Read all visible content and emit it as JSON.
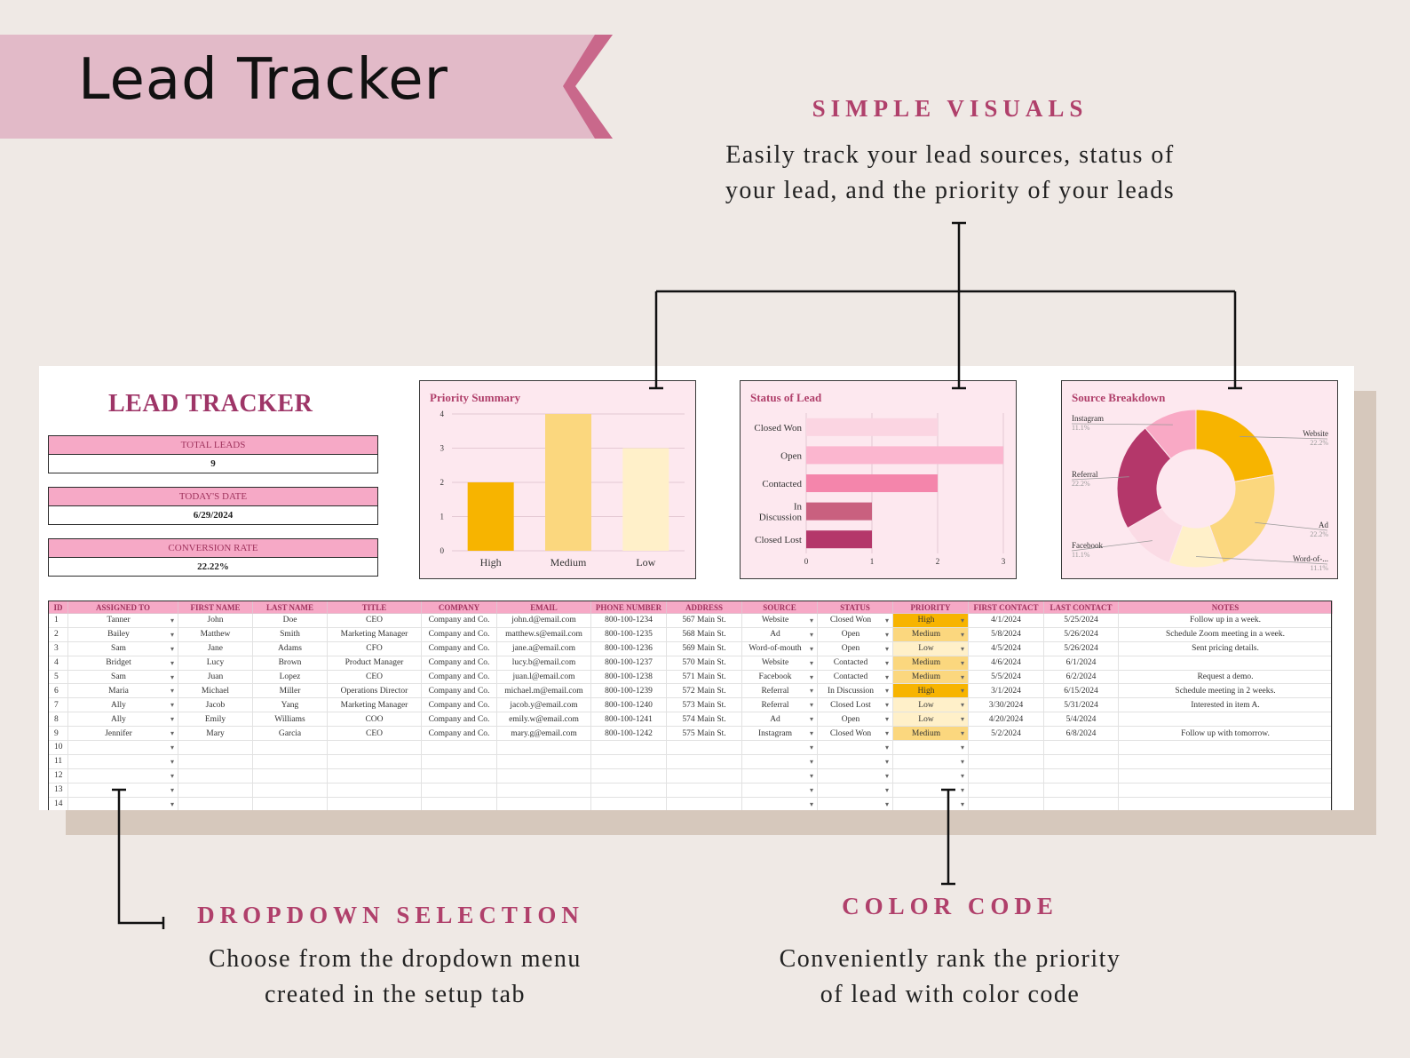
{
  "banner": {
    "title": "Lead Tracker"
  },
  "callouts": {
    "visuals": {
      "heading": "SIMPLE VISUALS",
      "line1": "Easily track your lead sources, status of",
      "line2": "your lead, and the priority of your leads"
    },
    "dropdown": {
      "heading": "DROPDOWN SELECTION",
      "line1": "Choose from the dropdown menu",
      "line2": "created in the setup tab"
    },
    "color": {
      "heading": "COLOR CODE",
      "line1": "Conveniently rank the priority",
      "line2": "of lead with color code"
    }
  },
  "sheet": {
    "title": "LEAD TRACKER",
    "kpis": [
      {
        "label": "TOTAL LEADS",
        "value": "9"
      },
      {
        "label": "TODAY'S DATE",
        "value": "6/29/2024"
      },
      {
        "label": "CONVERSION RATE",
        "value": "22.22%"
      }
    ]
  },
  "chart_data": [
    {
      "type": "bar",
      "title": "Priority Summary",
      "categories": [
        "High",
        "Medium",
        "Low"
      ],
      "values": [
        2,
        4,
        3
      ],
      "colors": [
        "#f7b400",
        "#fbd77e",
        "#fff0c9"
      ],
      "ylim": [
        0,
        4
      ],
      "yticks": [
        "0",
        "1",
        "2",
        "3",
        "4"
      ]
    },
    {
      "type": "bar",
      "orientation": "horizontal",
      "title": "Status of Lead",
      "categories": [
        "Closed Won",
        "Open",
        "Contacted",
        "In Discussion",
        "Closed Lost"
      ],
      "category_lines": [
        [
          "Closed Won"
        ],
        [
          "Open"
        ],
        [
          "Contacted"
        ],
        [
          "In",
          "Discussion"
        ],
        [
          "Closed Lost"
        ]
      ],
      "values": [
        2,
        3,
        2,
        1,
        1
      ],
      "colors": [
        "#fbd5e2",
        "#fbb6cf",
        "#f485ab",
        "#c9607f",
        "#b4376a"
      ],
      "xlim": [
        0,
        3
      ],
      "xticks": [
        "0",
        "1",
        "2",
        "3"
      ]
    },
    {
      "type": "pie",
      "title": "Source Breakdown",
      "labels": [
        "Website",
        "Ad",
        "Word-of-...",
        "Facebook",
        "Referral",
        "Instagram"
      ],
      "values": [
        22.2,
        22.2,
        11.1,
        11.1,
        22.2,
        11.1
      ],
      "value_labels": [
        "22.2%",
        "22.2%",
        "11.1%",
        "11.1%",
        "22.2%",
        "11.1%"
      ],
      "colors": [
        "#f7b400",
        "#fbd77e",
        "#fff0c9",
        "#fbdbe5",
        "#b4376a",
        "#f9a9c5"
      ]
    }
  ],
  "table": {
    "columns": [
      "ID",
      "ASSIGNED TO",
      "FIRST NAME",
      "LAST NAME",
      "TITLE",
      "COMPANY",
      "EMAIL",
      "PHONE NUMBER",
      "ADDRESS",
      "SOURCE",
      "STATUS",
      "PRIORITY",
      "FIRST CONTACT",
      "LAST CONTACT",
      "NOTES"
    ],
    "rows": [
      [
        "1",
        "Tanner",
        "John",
        "Doe",
        "CEO",
        "Company and Co.",
        "john.d@email.com",
        "800-100-1234",
        "567 Main St.",
        "Website",
        "Closed Won",
        "High",
        "4/1/2024",
        "5/25/2024",
        "Follow up in a week."
      ],
      [
        "2",
        "Bailey",
        "Matthew",
        "Smith",
        "Marketing Manager",
        "Company and Co.",
        "matthew.s@email.com",
        "800-100-1235",
        "568 Main St.",
        "Ad",
        "Open",
        "Medium",
        "5/8/2024",
        "5/26/2024",
        "Schedule Zoom meeting in a week."
      ],
      [
        "3",
        "Sam",
        "Jane",
        "Adams",
        "CFO",
        "Company and Co.",
        "jane.a@email.com",
        "800-100-1236",
        "569 Main St.",
        "Word-of-mouth",
        "Open",
        "Low",
        "4/5/2024",
        "5/26/2024",
        "Sent pricing details."
      ],
      [
        "4",
        "Bridget",
        "Lucy",
        "Brown",
        "Product Manager",
        "Company and Co.",
        "lucy.b@email.com",
        "800-100-1237",
        "570 Main St.",
        "Website",
        "Contacted",
        "Medium",
        "4/6/2024",
        "6/1/2024",
        ""
      ],
      [
        "5",
        "Sam",
        "Juan",
        "Lopez",
        "CEO",
        "Company and Co.",
        "juan.l@email.com",
        "800-100-1238",
        "571 Main St.",
        "Facebook",
        "Contacted",
        "Medium",
        "5/5/2024",
        "6/2/2024",
        "Request a demo."
      ],
      [
        "6",
        "Maria",
        "Michael",
        "Miller",
        "Operations Director",
        "Company and Co.",
        "michael.m@email.com",
        "800-100-1239",
        "572 Main St.",
        "Referral",
        "In Discussion",
        "High",
        "3/1/2024",
        "6/15/2024",
        "Schedule meeting in 2 weeks."
      ],
      [
        "7",
        "Ally",
        "Jacob",
        "Yang",
        "Marketing Manager",
        "Company and Co.",
        "jacob.y@email.com",
        "800-100-1240",
        "573 Main St.",
        "Referral",
        "Closed Lost",
        "Low",
        "3/30/2024",
        "5/31/2024",
        "Interested in item A."
      ],
      [
        "8",
        "Ally",
        "Emily",
        "Williams",
        "COO",
        "Company and Co.",
        "emily.w@email.com",
        "800-100-1241",
        "574 Main St.",
        "Ad",
        "Open",
        "Low",
        "4/20/2024",
        "5/4/2024",
        ""
      ],
      [
        "9",
        "Jennifer",
        "Mary",
        "Garcia",
        "CEO",
        "Company and Co.",
        "mary.g@email.com",
        "800-100-1242",
        "575 Main St.",
        "Instagram",
        "Closed Won",
        "Medium",
        "5/2/2024",
        "6/8/2024",
        "Follow up with tomorrow."
      ],
      [
        "10",
        "",
        "",
        "",
        "",
        "",
        "",
        "",
        "",
        "",
        "",
        "",
        "",
        "",
        ""
      ],
      [
        "11",
        "",
        "",
        "",
        "",
        "",
        "",
        "",
        "",
        "",
        "",
        "",
        "",
        "",
        ""
      ],
      [
        "12",
        "",
        "",
        "",
        "",
        "",
        "",
        "",
        "",
        "",
        "",
        "",
        "",
        "",
        ""
      ],
      [
        "13",
        "",
        "",
        "",
        "",
        "",
        "",
        "",
        "",
        "",
        "",
        "",
        "",
        "",
        ""
      ],
      [
        "14",
        "",
        "",
        "",
        "",
        "",
        "",
        "",
        "",
        "",
        "",
        "",
        "",
        "",
        ""
      ]
    ]
  },
  "colors": {
    "accent": "#b0406b",
    "banner": "#e2bac8",
    "banner_tip": "#c9688b",
    "header_pink": "#f6a9c6"
  }
}
